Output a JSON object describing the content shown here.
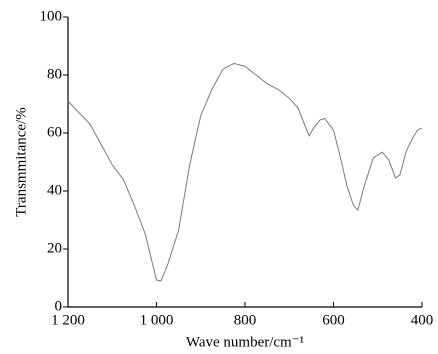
{
  "chart_data": {
    "type": "line",
    "xlabel": "Wave number/cm⁻¹",
    "ylabel": "Transmmitance/%",
    "x": [
      1200,
      1150,
      1100,
      1075,
      1050,
      1025,
      1010,
      1000,
      990,
      975,
      950,
      925,
      900,
      875,
      850,
      825,
      800,
      775,
      750,
      725,
      700,
      680,
      665,
      655,
      645,
      630,
      620,
      600,
      585,
      570,
      555,
      545,
      530,
      510,
      490,
      475,
      460,
      450,
      435,
      420,
      410,
      400
    ],
    "series": [
      {
        "name": "spectrum",
        "color": "#7a7a7a",
        "values": [
          71,
          63,
          49,
          44,
          35,
          25,
          15.5,
          9.3,
          9,
          14.5,
          26.5,
          49,
          66,
          75,
          82,
          84,
          83,
          80,
          77,
          75,
          72,
          68.6,
          62.8,
          59,
          61.7,
          64.5,
          65,
          61,
          52,
          42,
          35,
          33.4,
          42,
          51.4,
          53.4,
          50.7,
          44.5,
          45.5,
          54,
          58.6,
          61,
          61.7
        ]
      }
    ],
    "xlim": [
      1200,
      400
    ],
    "xticks": [
      {
        "value": 1200,
        "label": "1 200"
      },
      {
        "value": 1000,
        "label": "1 000"
      },
      800,
      600,
      400
    ],
    "ylim": [
      0,
      100
    ],
    "yticks": [
      0,
      20,
      40,
      60,
      80,
      100
    ],
    "grid": false
  }
}
